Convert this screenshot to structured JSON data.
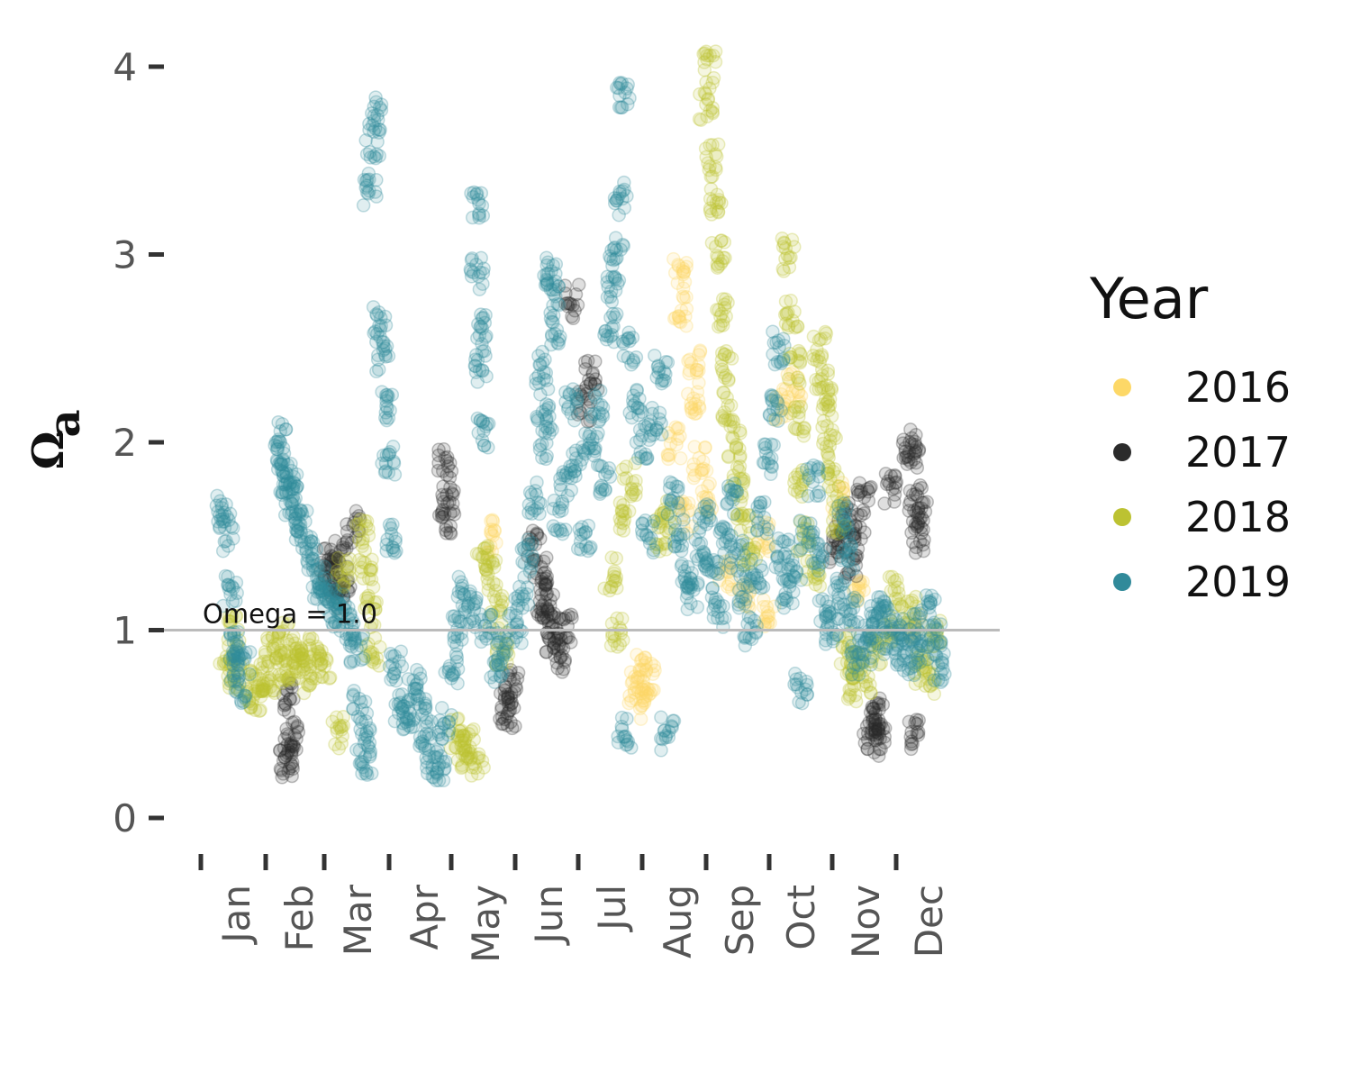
{
  "chart_data": {
    "type": "scatter",
    "ylabel": "Ωa",
    "ylabel_main": "Ω",
    "ylabel_sub": "a",
    "ylim": [
      0,
      4
    ],
    "y_ticks": [
      "0",
      "1",
      "2",
      "3",
      "4"
    ],
    "x_ticks": [
      "Jan",
      "Feb",
      "Mar",
      "Apr",
      "May",
      "Jun",
      "Jul",
      "Aug",
      "Sep",
      "Oct",
      "Nov",
      "Dec"
    ],
    "reference_line": {
      "y": 1.0,
      "label": "Omega = 1.0",
      "color": "#bbbbbb"
    },
    "legend": {
      "title": "Year",
      "position": "right"
    },
    "grid": false,
    "point_alpha": 0.15,
    "series": [
      {
        "name": "2016",
        "color": "#fdd867",
        "points": [
          [
            7.6,
            2.9
          ],
          [
            7.6,
            2.7
          ],
          [
            7.8,
            2.2
          ],
          [
            7.9,
            1.9
          ],
          [
            7.7,
            1.6
          ],
          [
            7.8,
            2.4
          ],
          [
            8.0,
            1.7
          ],
          [
            7.5,
            2.0
          ],
          [
            6.9,
            0.7
          ],
          [
            7.0,
            0.6
          ],
          [
            6.95,
            0.8
          ],
          [
            7.1,
            0.75
          ],
          [
            8.6,
            1.2
          ],
          [
            8.9,
            1.5
          ],
          [
            9.2,
            2.2
          ],
          [
            9.4,
            2.3
          ],
          [
            10.1,
            1.7
          ],
          [
            10.4,
            1.2
          ],
          [
            9.0,
            1.1
          ],
          [
            8.3,
            1.3
          ],
          [
            4.6,
            1.5
          ],
          [
            11.3,
            1.0
          ]
        ]
      },
      {
        "name": "2017",
        "color": "#2b2b2b",
        "points": [
          [
            1.35,
            0.3
          ],
          [
            1.4,
            0.35
          ],
          [
            1.45,
            0.45
          ],
          [
            1.4,
            0.65
          ],
          [
            2.05,
            1.35
          ],
          [
            2.1,
            1.3
          ],
          [
            2.2,
            1.25
          ],
          [
            2.25,
            1.4
          ],
          [
            2.3,
            1.2
          ],
          [
            2.45,
            1.55
          ],
          [
            3.9,
            1.9
          ],
          [
            3.9,
            1.6
          ],
          [
            3.95,
            1.7
          ],
          [
            4.85,
            0.6
          ],
          [
            4.9,
            0.55
          ],
          [
            4.95,
            0.7
          ],
          [
            5.3,
            1.45
          ],
          [
            5.4,
            1.3
          ],
          [
            5.45,
            1.1
          ],
          [
            5.5,
            1.2
          ],
          [
            5.55,
            1.0
          ],
          [
            5.6,
            0.95
          ],
          [
            5.7,
            0.85
          ],
          [
            5.8,
            1.0
          ],
          [
            5.9,
            2.75
          ],
          [
            6.1,
            2.2
          ],
          [
            6.2,
            2.35
          ],
          [
            10.05,
            1.45
          ],
          [
            10.15,
            1.5
          ],
          [
            10.25,
            1.6
          ],
          [
            10.3,
            1.35
          ],
          [
            10.4,
            1.55
          ],
          [
            10.5,
            1.7
          ],
          [
            10.6,
            0.45
          ],
          [
            10.65,
            0.5
          ],
          [
            10.7,
            0.55
          ],
          [
            10.75,
            0.4
          ],
          [
            10.9,
            1.75
          ],
          [
            11.2,
            2.0
          ],
          [
            11.25,
            1.9
          ],
          [
            11.3,
            1.7
          ],
          [
            11.35,
            1.5
          ],
          [
            11.4,
            1.6
          ],
          [
            11.25,
            0.45
          ]
        ]
      },
      {
        "name": "2018",
        "color": "#bcc232",
        "points": [
          [
            0.4,
            0.8
          ],
          [
            0.5,
            1.0
          ],
          [
            0.55,
            0.75
          ],
          [
            0.75,
            0.7
          ],
          [
            0.85,
            0.65
          ],
          [
            0.95,
            0.75
          ],
          [
            1.05,
            0.75
          ],
          [
            1.1,
            0.9
          ],
          [
            1.25,
            0.8
          ],
          [
            1.3,
            0.95
          ],
          [
            1.45,
            0.8
          ],
          [
            1.55,
            0.9
          ],
          [
            1.6,
            0.85
          ],
          [
            1.75,
            0.75
          ],
          [
            1.85,
            0.9
          ],
          [
            2.0,
            0.8
          ],
          [
            2.2,
            0.45
          ],
          [
            2.3,
            1.3
          ],
          [
            2.6,
            1.5
          ],
          [
            2.65,
            1.3
          ],
          [
            2.7,
            1.1
          ],
          [
            2.75,
            0.9
          ],
          [
            4.1,
            0.45
          ],
          [
            4.2,
            0.35
          ],
          [
            4.3,
            0.4
          ],
          [
            4.4,
            0.3
          ],
          [
            4.5,
            1.4
          ],
          [
            4.6,
            1.3
          ],
          [
            4.7,
            1.1
          ],
          [
            4.8,
            0.9
          ],
          [
            6.5,
            1.3
          ],
          [
            6.6,
            1.0
          ],
          [
            6.7,
            1.6
          ],
          [
            6.8,
            1.8
          ],
          [
            7.3,
            1.5
          ],
          [
            7.4,
            1.6
          ],
          [
            8.0,
            3.8
          ],
          [
            8.05,
            4.0
          ],
          [
            8.1,
            3.5
          ],
          [
            8.15,
            3.3
          ],
          [
            8.2,
            3.0
          ],
          [
            8.25,
            2.7
          ],
          [
            8.3,
            2.4
          ],
          [
            8.35,
            2.2
          ],
          [
            8.45,
            2.0
          ],
          [
            8.5,
            1.8
          ],
          [
            8.6,
            1.6
          ],
          [
            8.7,
            1.4
          ],
          [
            9.3,
            3.0
          ],
          [
            9.35,
            2.7
          ],
          [
            9.4,
            2.4
          ],
          [
            9.45,
            2.1
          ],
          [
            9.5,
            1.8
          ],
          [
            9.55,
            1.5
          ],
          [
            9.7,
            1.3
          ],
          [
            9.8,
            2.5
          ],
          [
            9.85,
            2.3
          ],
          [
            9.9,
            2.2
          ],
          [
            9.95,
            2.0
          ],
          [
            10.0,
            1.8
          ],
          [
            10.1,
            1.6
          ],
          [
            10.2,
            0.9
          ],
          [
            10.3,
            0.7
          ],
          [
            10.4,
            0.8
          ],
          [
            10.5,
            0.75
          ],
          [
            10.7,
            0.9
          ],
          [
            10.9,
            1.0
          ],
          [
            11.0,
            1.2
          ],
          [
            11.2,
            1.1
          ],
          [
            11.4,
            0.8
          ],
          [
            11.5,
            0.75
          ],
          [
            11.6,
            1.0
          ]
        ]
      },
      {
        "name": "2019",
        "color": "#318a9a",
        "points": [
          [
            0.35,
            1.65
          ],
          [
            0.4,
            1.5
          ],
          [
            0.45,
            1.2
          ],
          [
            0.5,
            0.9
          ],
          [
            0.55,
            0.8
          ],
          [
            0.6,
            0.7
          ],
          [
            0.65,
            0.85
          ],
          [
            1.25,
            2.05
          ],
          [
            1.3,
            1.9
          ],
          [
            1.35,
            1.8
          ],
          [
            1.4,
            1.7
          ],
          [
            1.45,
            1.75
          ],
          [
            1.5,
            1.6
          ],
          [
            1.6,
            1.55
          ],
          [
            1.7,
            1.45
          ],
          [
            1.8,
            1.35
          ],
          [
            1.9,
            1.25
          ],
          [
            2.0,
            1.2
          ],
          [
            2.1,
            1.15
          ],
          [
            2.2,
            1.1
          ],
          [
            2.3,
            1.05
          ],
          [
            2.4,
            1.0
          ],
          [
            2.5,
            0.9
          ],
          [
            2.55,
            0.6
          ],
          [
            2.6,
            0.4
          ],
          [
            2.65,
            0.3
          ],
          [
            2.7,
            3.35
          ],
          [
            2.75,
            3.6
          ],
          [
            2.8,
            3.75
          ],
          [
            2.85,
            2.65
          ],
          [
            2.9,
            2.45
          ],
          [
            2.95,
            2.2
          ],
          [
            3.0,
            1.9
          ],
          [
            3.05,
            1.5
          ],
          [
            3.1,
            0.8
          ],
          [
            3.2,
            0.6
          ],
          [
            3.3,
            0.5
          ],
          [
            3.4,
            0.7
          ],
          [
            3.5,
            0.6
          ],
          [
            3.6,
            0.45
          ],
          [
            3.7,
            0.3
          ],
          [
            3.8,
            0.25
          ],
          [
            3.9,
            0.5
          ],
          [
            4.0,
            0.8
          ],
          [
            4.1,
            1.0
          ],
          [
            4.2,
            1.2
          ],
          [
            4.3,
            1.1
          ],
          [
            4.4,
            3.25
          ],
          [
            4.4,
            2.9
          ],
          [
            4.45,
            2.6
          ],
          [
            4.45,
            2.4
          ],
          [
            4.5,
            2.05
          ],
          [
            4.55,
            1.0
          ],
          [
            4.7,
            0.8
          ],
          [
            4.8,
            0.9
          ],
          [
            5.0,
            1.0
          ],
          [
            5.1,
            1.2
          ],
          [
            5.2,
            1.4
          ],
          [
            5.3,
            1.7
          ],
          [
            5.4,
            2.4
          ],
          [
            5.45,
            2.2
          ],
          [
            5.5,
            2.0
          ],
          [
            5.55,
            2.9
          ],
          [
            5.6,
            2.8
          ],
          [
            5.65,
            2.6
          ],
          [
            5.7,
            1.6
          ],
          [
            5.8,
            1.8
          ],
          [
            5.9,
            2.2
          ],
          [
            6.0,
            1.9
          ],
          [
            6.1,
            1.5
          ],
          [
            6.2,
            2.0
          ],
          [
            6.3,
            2.2
          ],
          [
            6.4,
            1.8
          ],
          [
            6.5,
            2.6
          ],
          [
            6.55,
            2.8
          ],
          [
            6.6,
            3.0
          ],
          [
            6.65,
            3.3
          ],
          [
            6.7,
            3.87
          ],
          [
            6.72,
            0.45
          ],
          [
            6.8,
            2.5
          ],
          [
            6.9,
            2.2
          ],
          [
            7.0,
            2.0
          ],
          [
            7.1,
            1.5
          ],
          [
            7.2,
            2.1
          ],
          [
            7.3,
            2.4
          ],
          [
            7.4,
            0.45
          ],
          [
            7.5,
            1.7
          ],
          [
            7.6,
            1.5
          ],
          [
            7.7,
            1.3
          ],
          [
            7.8,
            1.2
          ],
          [
            7.9,
            1.4
          ],
          [
            8.0,
            1.6
          ],
          [
            8.1,
            1.3
          ],
          [
            8.2,
            1.1
          ],
          [
            8.3,
            1.5
          ],
          [
            8.4,
            1.7
          ],
          [
            8.5,
            1.4
          ],
          [
            8.6,
            1.2
          ],
          [
            8.7,
            1.0
          ],
          [
            8.8,
            1.3
          ],
          [
            8.9,
            1.6
          ],
          [
            9.0,
            1.9
          ],
          [
            9.1,
            2.2
          ],
          [
            9.15,
            2.5
          ],
          [
            9.2,
            1.4
          ],
          [
            9.3,
            1.2
          ],
          [
            9.4,
            1.3
          ],
          [
            9.5,
            0.7
          ],
          [
            9.6,
            1.5
          ],
          [
            9.7,
            1.8
          ],
          [
            9.8,
            1.4
          ],
          [
            9.9,
            1.1
          ],
          [
            10.0,
            1.0
          ],
          [
            10.1,
            1.2
          ],
          [
            10.2,
            1.6
          ],
          [
            10.25,
            1.4
          ],
          [
            10.3,
            1.1
          ],
          [
            10.4,
            0.85
          ],
          [
            10.5,
            0.9
          ],
          [
            10.6,
            1.0
          ],
          [
            10.7,
            1.05
          ],
          [
            10.8,
            1.1
          ],
          [
            10.9,
            0.95
          ],
          [
            11.0,
            1.0
          ],
          [
            11.1,
            0.9
          ],
          [
            11.2,
            0.85
          ],
          [
            11.3,
            1.0
          ],
          [
            11.4,
            0.9
          ],
          [
            11.5,
            1.1
          ],
          [
            11.6,
            0.95
          ],
          [
            11.65,
            0.8
          ]
        ]
      }
    ]
  }
}
